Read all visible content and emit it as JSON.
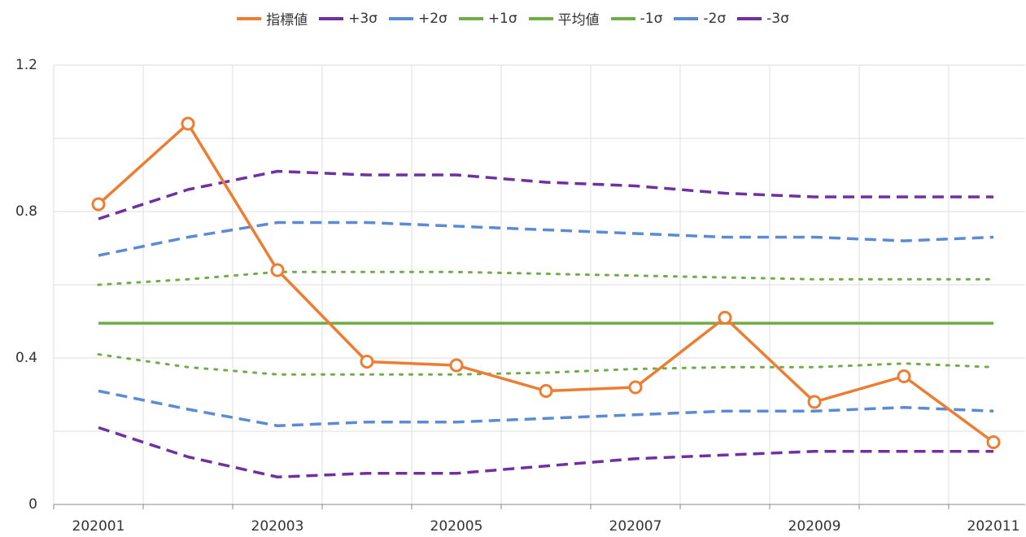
{
  "chart_data": {
    "type": "line",
    "categories": [
      "202001",
      null,
      "202003",
      null,
      "202005",
      null,
      "202007",
      null,
      "202009",
      null,
      "202011"
    ],
    "ylim": [
      0,
      1.2
    ],
    "yticks": [
      0,
      0.4,
      0.8,
      1.2
    ],
    "minor_yticks": [
      0.2,
      0.6,
      1.0
    ],
    "grid": true,
    "legend": "top",
    "series": [
      {
        "name": "指標値",
        "color": "#ed7d31",
        "dash": "solid",
        "marker": "circle",
        "values": [
          0.82,
          1.04,
          0.64,
          0.39,
          0.38,
          0.31,
          0.32,
          0.51,
          0.28,
          0.35,
          0.17
        ]
      },
      {
        "name": "+3σ",
        "color": "#7030a0",
        "dash": "dashed",
        "values": [
          0.78,
          0.86,
          0.91,
          0.9,
          0.9,
          0.88,
          0.87,
          0.85,
          0.84,
          0.84,
          0.84
        ]
      },
      {
        "name": "+2σ",
        "color": "#5b8bd5",
        "dash": "dashed",
        "values": [
          0.68,
          0.73,
          0.77,
          0.77,
          0.76,
          0.75,
          0.74,
          0.73,
          0.73,
          0.72,
          0.73
        ]
      },
      {
        "name": "+1σ",
        "color": "#70ad47",
        "dash": "dotted",
        "values": [
          0.6,
          0.615,
          0.635,
          0.635,
          0.635,
          0.63,
          0.625,
          0.62,
          0.615,
          0.615,
          0.615
        ]
      },
      {
        "name": "平均値",
        "color": "#70ad47",
        "dash": "solid",
        "values": [
          0.495,
          0.495,
          0.495,
          0.495,
          0.495,
          0.495,
          0.495,
          0.495,
          0.495,
          0.495,
          0.495
        ]
      },
      {
        "name": "-1σ",
        "color": "#70ad47",
        "dash": "dotted",
        "values": [
          0.41,
          0.375,
          0.355,
          0.355,
          0.355,
          0.36,
          0.37,
          0.375,
          0.375,
          0.385,
          0.375
        ]
      },
      {
        "name": "-2σ",
        "color": "#5b8bd5",
        "dash": "dashed",
        "values": [
          0.31,
          0.26,
          0.215,
          0.225,
          0.225,
          0.235,
          0.245,
          0.255,
          0.255,
          0.265,
          0.255
        ]
      },
      {
        "name": "-3σ",
        "color": "#7030a0",
        "dash": "dashed",
        "values": [
          0.21,
          0.13,
          0.075,
          0.085,
          0.085,
          0.105,
          0.125,
          0.135,
          0.145,
          0.145,
          0.145
        ]
      }
    ]
  }
}
